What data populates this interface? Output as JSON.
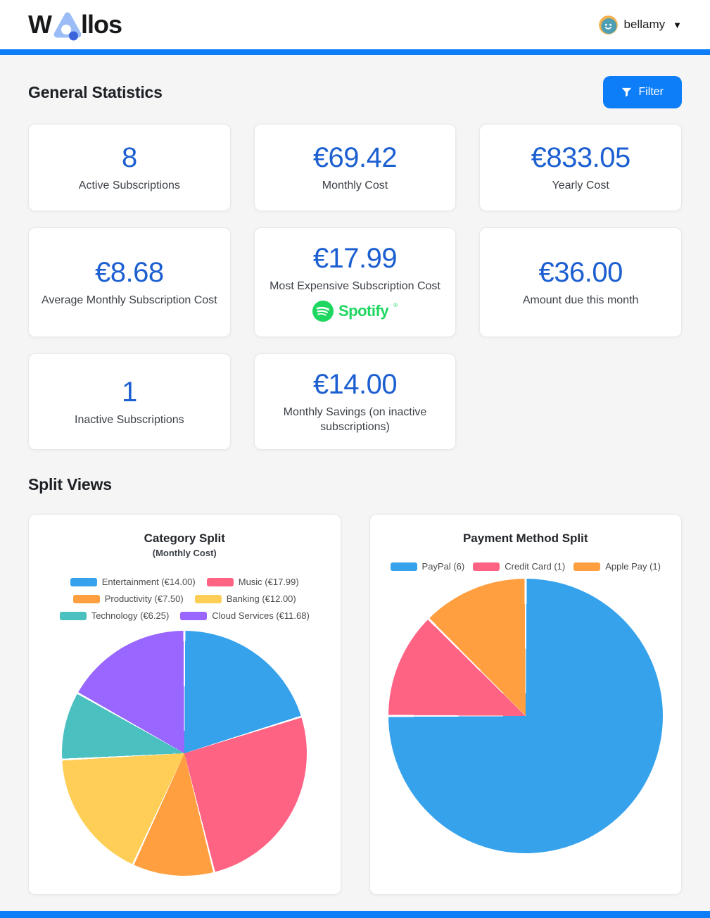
{
  "header": {
    "logo_prefix": "W",
    "logo_suffix": "llos",
    "user_name": "bellamy"
  },
  "colors": {
    "accent": "#0D7EF8",
    "stat_number": "#1C5FD1",
    "page_bg": "#F5F5F6",
    "spotify_green": "#1ED760"
  },
  "general_statistics": {
    "title": "General Statistics",
    "filter_label": "Filter",
    "cards": [
      {
        "value": "8",
        "label": "Active Subscriptions"
      },
      {
        "value": "€69.42",
        "label": "Monthly Cost"
      },
      {
        "value": "€833.05",
        "label": "Yearly Cost"
      },
      {
        "value": "€8.68",
        "label": "Average Monthly Subscription Cost"
      },
      {
        "value": "€17.99",
        "label": "Most Expensive Subscription Cost",
        "logo": "Spotify",
        "logo_mark": "®"
      },
      {
        "value": "€36.00",
        "label": "Amount due this month"
      },
      {
        "value": "1",
        "label": "Inactive Subscriptions"
      },
      {
        "value": "€14.00",
        "label": "Monthly Savings (on inactive subscriptions)"
      }
    ]
  },
  "split_views": {
    "title": "Split Views"
  },
  "chart_data": [
    {
      "type": "pie",
      "title": "Category Split",
      "subtitle": "(Monthly Cost)",
      "categories": [
        "Entertainment",
        "Music",
        "Productivity",
        "Banking",
        "Technology",
        "Cloud Services"
      ],
      "values": [
        14.0,
        17.99,
        7.5,
        12.0,
        6.25,
        11.68
      ],
      "legend_labels": [
        "Entertainment (€14.00)",
        "Music (€17.99)",
        "Productivity (€7.50)",
        "Banking (€12.00)",
        "Technology (€6.25)",
        "Cloud Services (€11.68)"
      ],
      "colors": [
        "#36A2EB",
        "#FF6384",
        "#FF9F40",
        "#FFCE56",
        "#4BC0C0",
        "#9966FF"
      ],
      "legend_position": "top",
      "start_angle_deg": 0,
      "direction": "clockwise",
      "unit": "€"
    },
    {
      "type": "pie",
      "title": "Payment Method Split",
      "categories": [
        "PayPal",
        "Credit Card",
        "Apple Pay"
      ],
      "values": [
        6,
        1,
        1
      ],
      "legend_labels": [
        "PayPal (6)",
        "Credit Card (1)",
        "Apple Pay (1)"
      ],
      "colors": [
        "#36A2EB",
        "#FF6384",
        "#FF9F40"
      ],
      "legend_position": "top",
      "start_angle_deg": 0,
      "direction": "clockwise"
    }
  ]
}
